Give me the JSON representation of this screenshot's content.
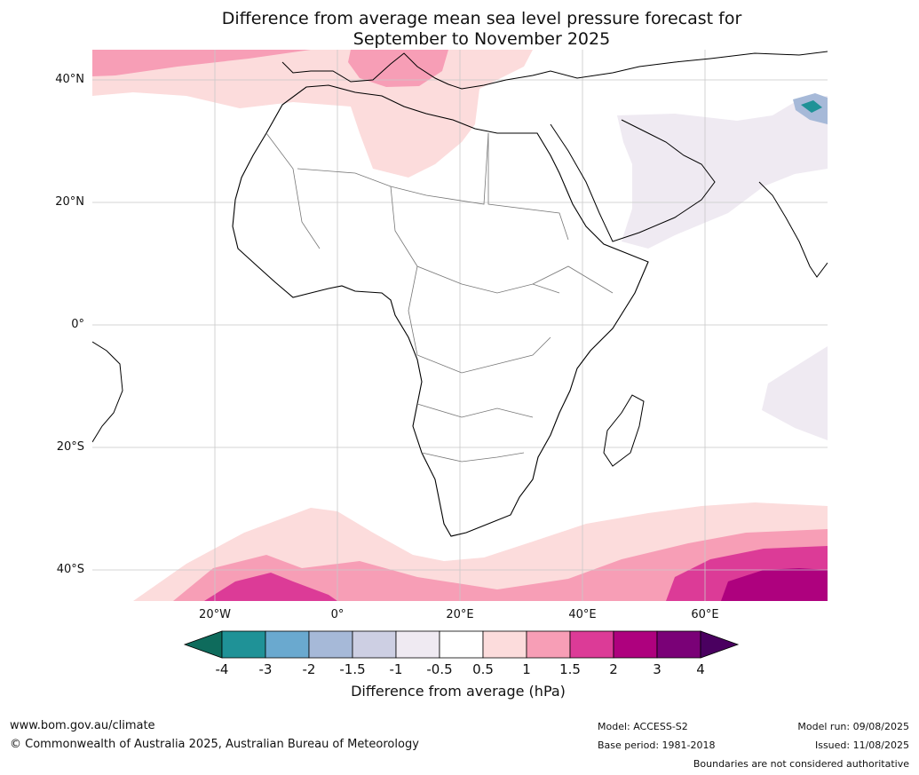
{
  "title": {
    "line1": "Difference from average mean sea level pressure forecast for",
    "line2": "September to November 2025"
  },
  "axes": {
    "lat_labels": [
      "40°N",
      "20°N",
      "0°",
      "20°S",
      "40°S"
    ],
    "lon_labels": [
      "20°W",
      "0°",
      "20°E",
      "40°E",
      "60°E"
    ]
  },
  "colorbar": {
    "title": "Difference from average (hPa)",
    "ticks": [
      "-4",
      "-3",
      "-2",
      "-1.5",
      "-1",
      "-0.5",
      "0.5",
      "1",
      "1.5",
      "2",
      "3",
      "4"
    ],
    "colors": [
      "#0e6b5c",
      "#1f9297",
      "#6aa9cf",
      "#a6b9d8",
      "#cdcfe3",
      "#efeaf2",
      "#ffffff",
      "#fcdcdc",
      "#f79eb6",
      "#dc3b97",
      "#ae017e",
      "#7a0177",
      "#4a0060"
    ]
  },
  "footer": {
    "url": "www.bom.gov.au/climate",
    "copyright": "© Commonwealth of Australia 2025, Australian Bureau of Meteorology",
    "model": "Model: ACCESS-S2",
    "base_period": "Base period: 1981-2018",
    "model_run": "Model run: 09/08/2025",
    "issued": "Issued: 11/08/2025",
    "disclaimer": "Boundaries are not considered authoritative"
  }
}
